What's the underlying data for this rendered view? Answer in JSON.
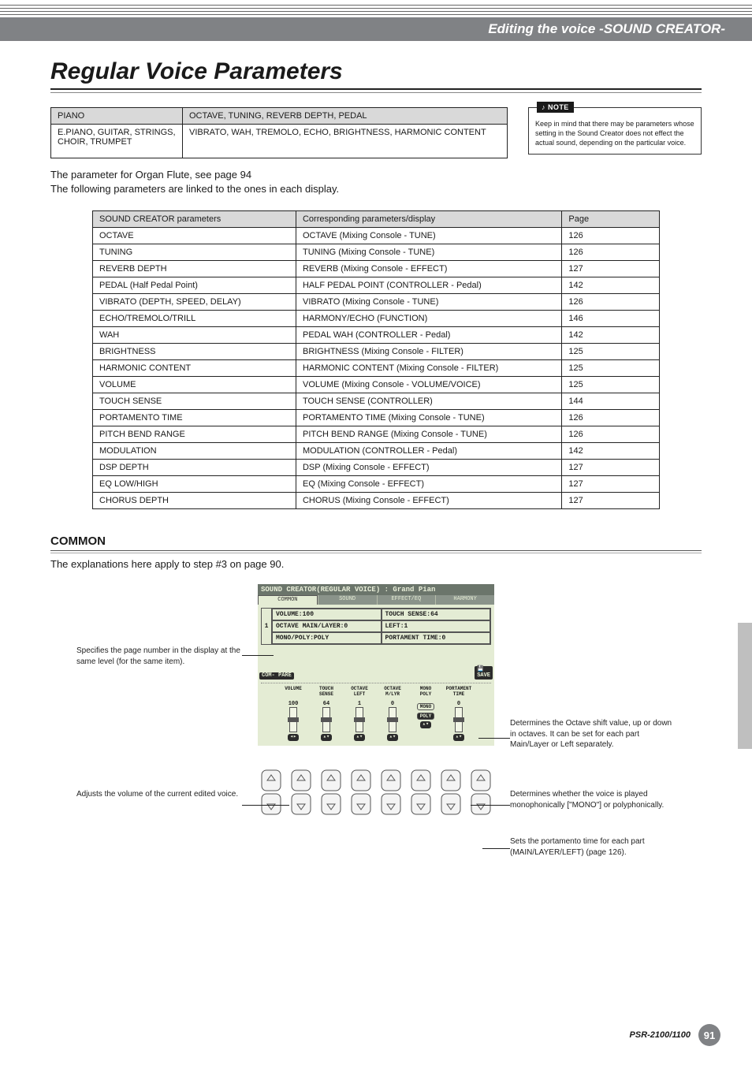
{
  "header_band": "Editing the voice  -SOUND CREATOR-",
  "title": "Regular Voice Parameters",
  "note": {
    "tag": "NOTE",
    "text": "Keep in mind that there may be parameters whose setting in the Sound Creator does not effect the actual sound, depending on the particular voice."
  },
  "ptable": {
    "rows": [
      [
        "PIANO",
        "OCTAVE, TUNING, REVERB DEPTH, PEDAL"
      ],
      [
        "E.PIANO, GUITAR, STRINGS, CHOIR, TRUMPET",
        "VIBRATO, WAH, TREMOLO, ECHO, BRIGHTNESS, HARMONIC CONTENT"
      ]
    ]
  },
  "body1": "The parameter for Organ Flute, see page 94",
  "body2": "The following parameters are linked to the ones in each display.",
  "bigtable": {
    "headers": [
      "SOUND CREATOR parameters",
      "Corresponding parameters/display",
      "Page"
    ],
    "rows": [
      [
        "OCTAVE",
        "OCTAVE (Mixing Console - TUNE)",
        "126"
      ],
      [
        "TUNING",
        "TUNING (Mixing Console - TUNE)",
        "126"
      ],
      [
        "REVERB DEPTH",
        "REVERB (Mixing Console - EFFECT)",
        "127"
      ],
      [
        "PEDAL (Half Pedal Point)",
        "HALF PEDAL POINT (CONTROLLER - Pedal)",
        "142"
      ],
      [
        "VIBRATO (DEPTH, SPEED, DELAY)",
        "VIBRATO (Mixing Console - TUNE)",
        "126"
      ],
      [
        "ECHO/TREMOLO/TRILL",
        "HARMONY/ECHO (FUNCTION)",
        "146"
      ],
      [
        "WAH",
        "PEDAL WAH (CONTROLLER - Pedal)",
        "142"
      ],
      [
        "BRIGHTNESS",
        "BRIGHTNESS (Mixing Console - FILTER)",
        "125"
      ],
      [
        "HARMONIC CONTENT",
        "HARMONIC CONTENT (Mixing Console - FILTER)",
        "125"
      ],
      [
        "VOLUME",
        "VOLUME (Mixing Console - VOLUME/VOICE)",
        "125"
      ],
      [
        "TOUCH SENSE",
        "TOUCH SENSE (CONTROLLER)",
        "144"
      ],
      [
        "PORTAMENTO TIME",
        "PORTAMENTO TIME (Mixing Console - TUNE)",
        "126"
      ],
      [
        "PITCH BEND RANGE",
        "PITCH BEND RANGE (Mixing Console - TUNE)",
        "126"
      ],
      [
        "MODULATION",
        "MODULATION (CONTROLLER - Pedal)",
        "142"
      ],
      [
        "DSP DEPTH",
        "DSP (Mixing Console - EFFECT)",
        "127"
      ],
      [
        "EQ LOW/HIGH",
        "EQ (Mixing Console - EFFECT)",
        "127"
      ],
      [
        "CHORUS DEPTH",
        "CHORUS (Mixing Console - EFFECT)",
        "127"
      ]
    ]
  },
  "section": {
    "head": "COMMON",
    "sub": "The explanations here apply to step #3 on page 90."
  },
  "lcd": {
    "title": "SOUND CREATOR(REGULAR VOICE) : Grand Pian",
    "tabs": [
      "COMMON",
      "SOUND",
      "EFFECT/EQ",
      "HARMONY"
    ],
    "grid_num": "1",
    "grid": [
      [
        "VOLUME:100",
        "TOUCH SENSE:64"
      ],
      [
        "OCTAVE MAIN/LAYER:0",
        "LEFT:1"
      ],
      [
        "MONO/POLY:POLY",
        "PORTAMENT TIME:0"
      ]
    ],
    "compare": "COM-\nPARE",
    "save": "SAVE",
    "sliders": [
      {
        "label": "VOLUME",
        "val": "100",
        "arrows": "◂▸"
      },
      {
        "label": "TOUCH\nSENSE",
        "val": "64",
        "arrows": "▴▾"
      },
      {
        "label": "OCTAVE\nLEFT",
        "val": "1",
        "arrows": "▴▾"
      },
      {
        "label": "OCTAVE\nM/LYR",
        "val": "0",
        "arrows": "▴▾"
      },
      {
        "label": "MONO\nPOLY",
        "pill_top": "MONO",
        "pill_bot": "POLY",
        "arrows": "▴▾"
      },
      {
        "label": "PORTAMENT\nTIME",
        "val": "0",
        "arrows": "▴▾"
      }
    ]
  },
  "annotations": {
    "left1": "Specifies the page number in the display at the same level (for the same item).",
    "left2": "Adjusts the volume of the current edited voice.",
    "right1": "Determines the Octave shift value, up or down in octaves. It can be set for each part Main/Layer or Left separately.",
    "right2": "Determines whether the voice is played monophonically [\"MONO\"] or polyphonically.",
    "right3": "Sets the portamento time for each part (MAIN/LAYER/LEFT) (page 126)."
  },
  "footer": {
    "model": "PSR-2100/1100",
    "page": "91"
  }
}
